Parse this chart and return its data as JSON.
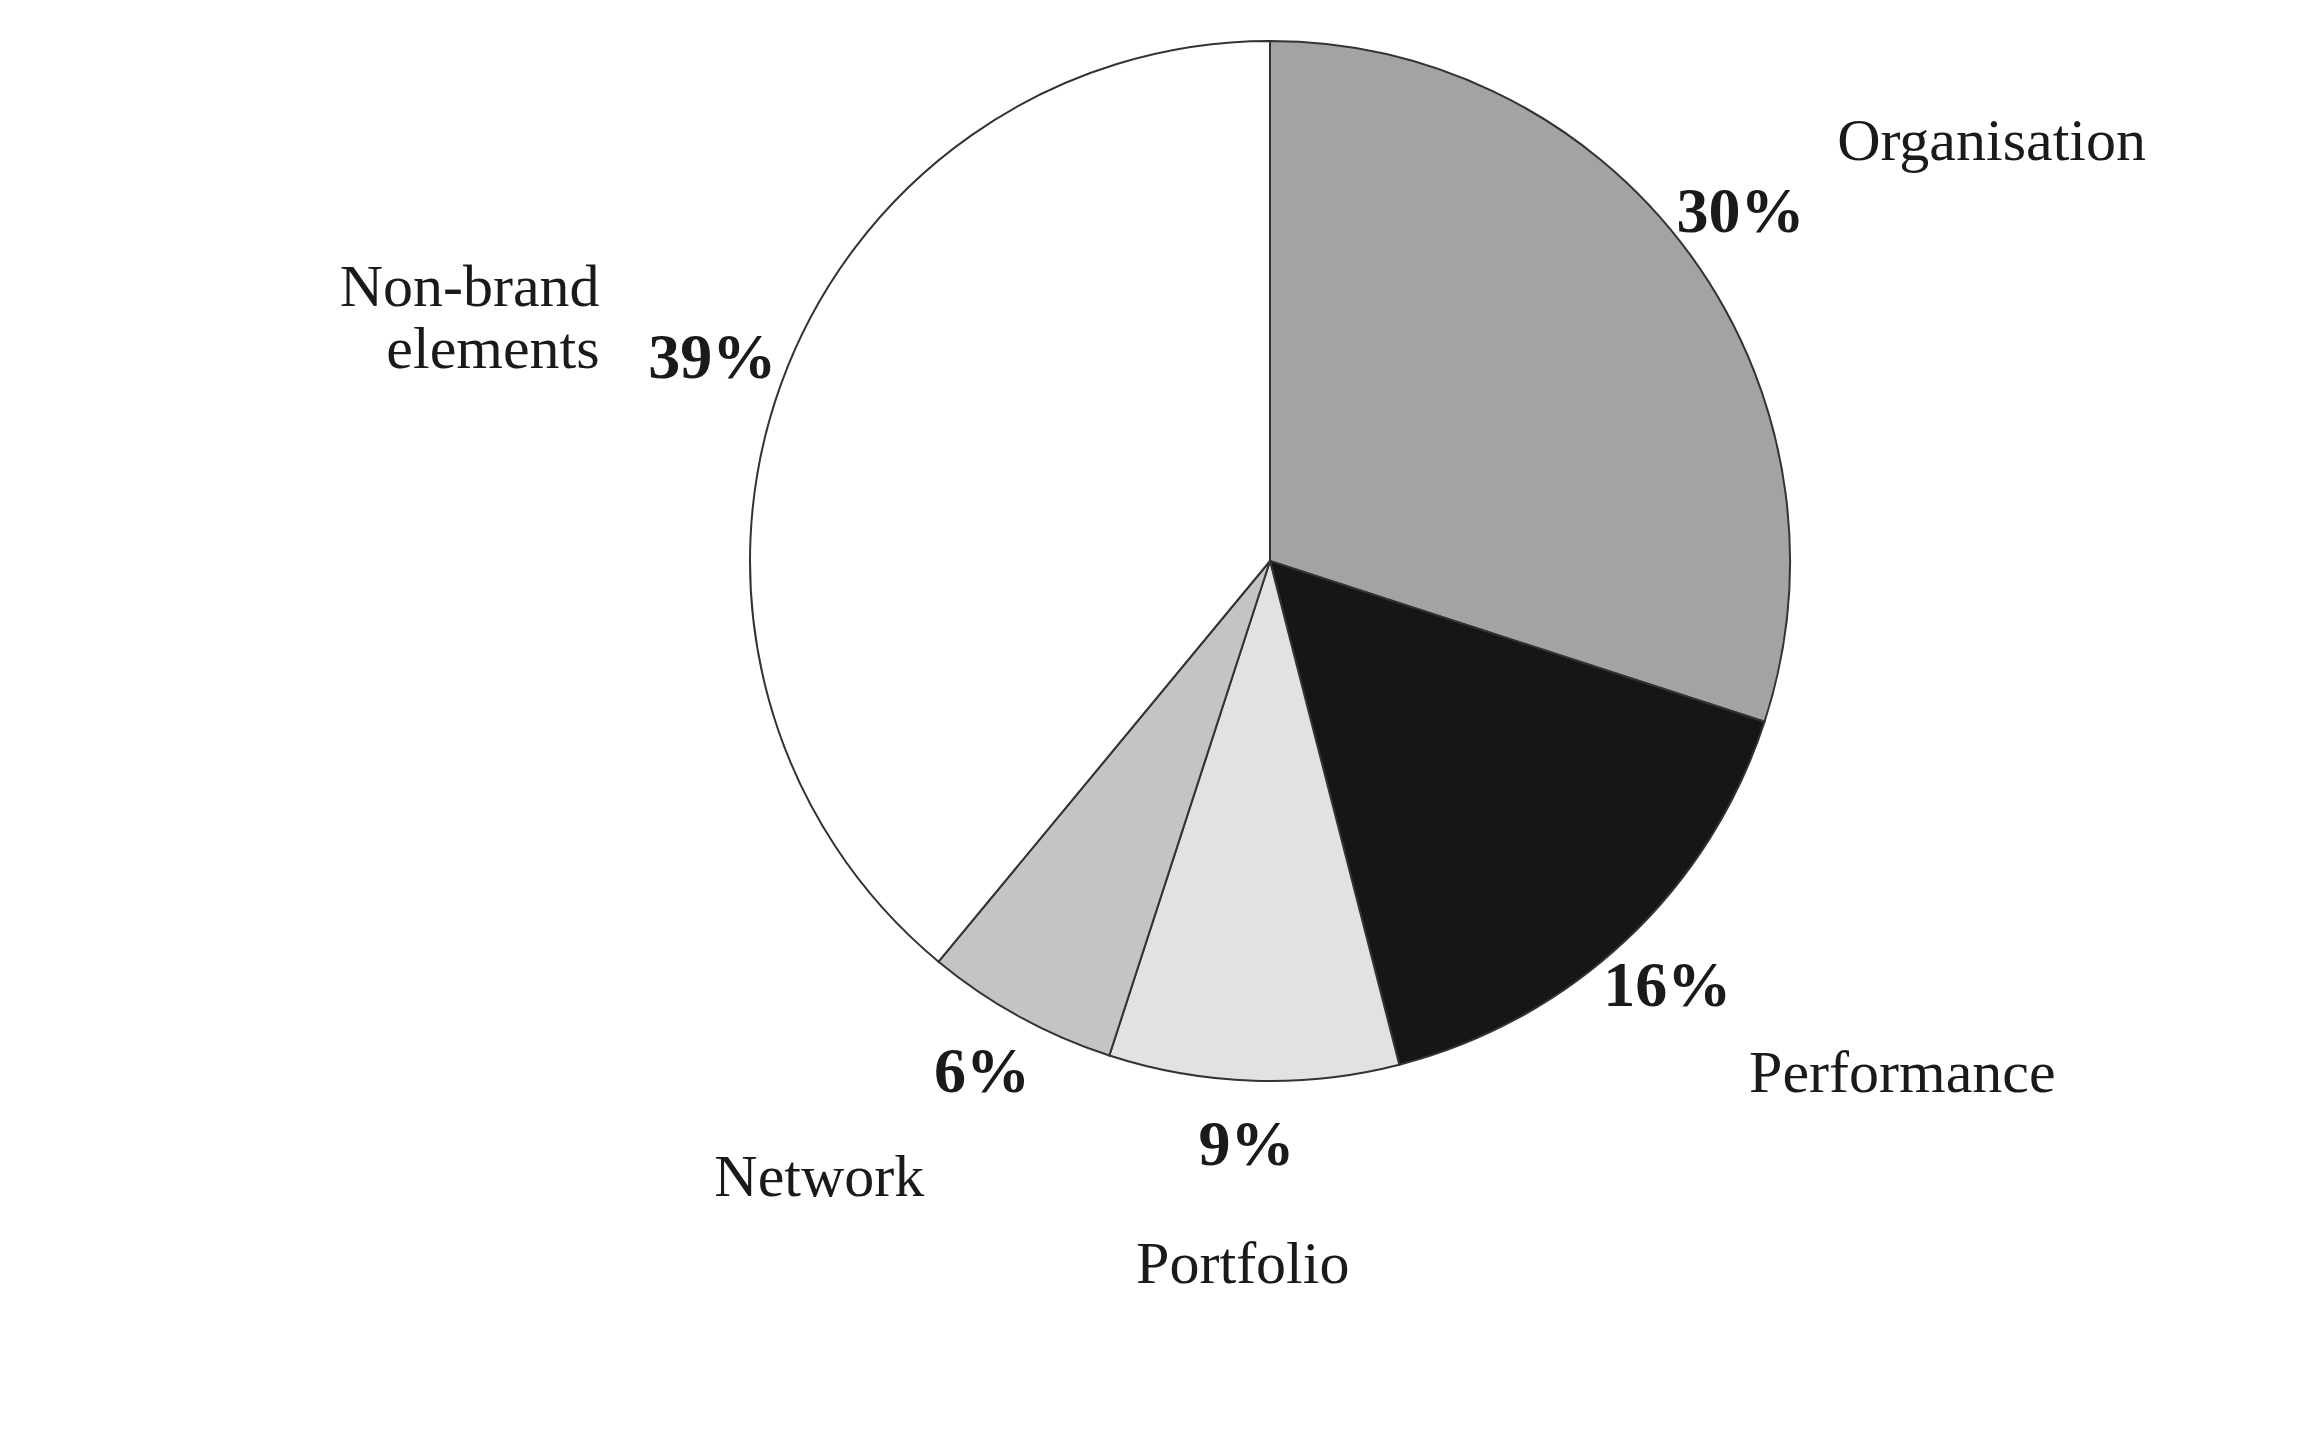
{
  "chart_data": {
    "type": "pie",
    "categories": [
      "Organisation",
      "Performance",
      "Portfolio",
      "Network",
      "Non-brand elements"
    ],
    "values": [
      30,
      16,
      9,
      6,
      39
    ],
    "value_labels": [
      "30%",
      "16%",
      "9%",
      "6%",
      "39%"
    ],
    "colors": [
      "#a3a3a3",
      "#161616",
      "#e2e2e2",
      "#c4c4c4",
      "#ffffff"
    ]
  }
}
